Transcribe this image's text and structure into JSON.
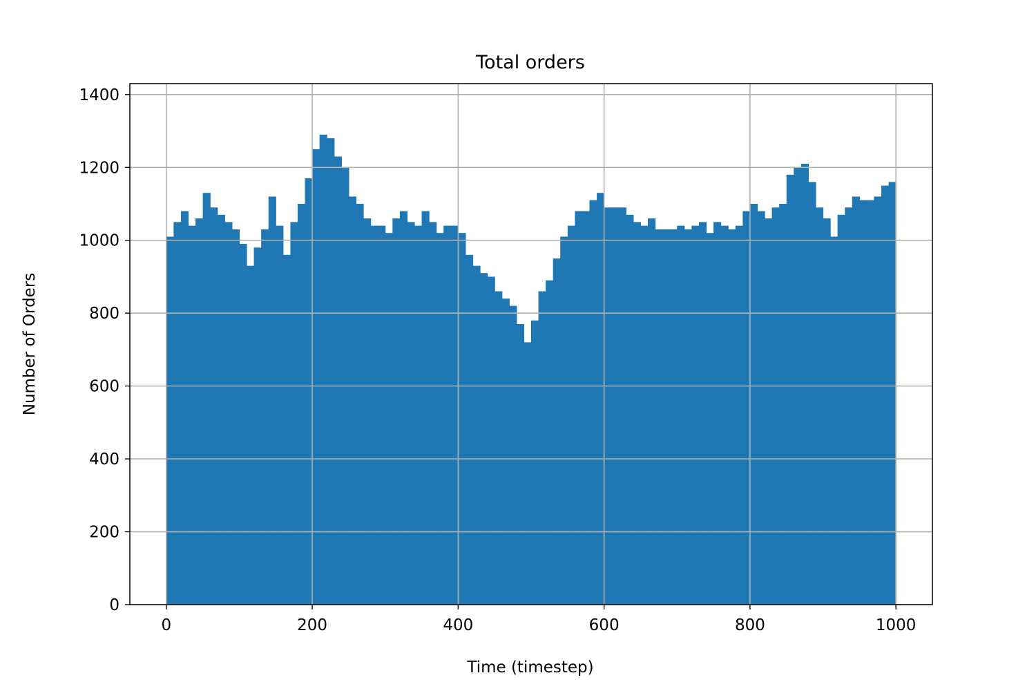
{
  "chart_data": {
    "type": "bar",
    "title": "Total orders",
    "xlabel": "Time (timestep)",
    "ylabel": "Number of Orders",
    "xlim": [
      -50,
      1050
    ],
    "ylim": [
      0,
      1430
    ],
    "x_ticks": [
      0,
      200,
      400,
      600,
      800,
      1000
    ],
    "x_tick_labels": [
      "0",
      "200",
      "400",
      "600",
      "800",
      "1000"
    ],
    "y_ticks": [
      0,
      200,
      400,
      600,
      800,
      1000,
      1200,
      1400
    ],
    "y_tick_labels": [
      "0",
      "200",
      "400",
      "600",
      "800",
      "1000",
      "1200",
      "1400"
    ],
    "grid": true,
    "bar_color": "#1f77b4",
    "x_start": 0,
    "x_step": 10,
    "values": [
      1010,
      1050,
      1080,
      1040,
      1060,
      1130,
      1090,
      1070,
      1050,
      1030,
      990,
      930,
      980,
      1030,
      1120,
      1040,
      960,
      1050,
      1100,
      1170,
      1250,
      1290,
      1280,
      1230,
      1200,
      1120,
      1100,
      1060,
      1040,
      1040,
      1020,
      1060,
      1080,
      1050,
      1040,
      1080,
      1050,
      1020,
      1040,
      1040,
      1020,
      960,
      930,
      910,
      900,
      860,
      840,
      820,
      770,
      720,
      780,
      860,
      890,
      950,
      1010,
      1040,
      1080,
      1080,
      1110,
      1130,
      1090,
      1090,
      1090,
      1070,
      1050,
      1040,
      1060,
      1030,
      1030,
      1030,
      1040,
      1030,
      1040,
      1050,
      1020,
      1050,
      1040,
      1030,
      1040,
      1080,
      1100,
      1080,
      1060,
      1090,
      1100,
      1180,
      1200,
      1210,
      1160,
      1090,
      1060,
      1010,
      1070,
      1090,
      1120,
      1110,
      1110,
      1120,
      1150,
      1160
    ]
  }
}
